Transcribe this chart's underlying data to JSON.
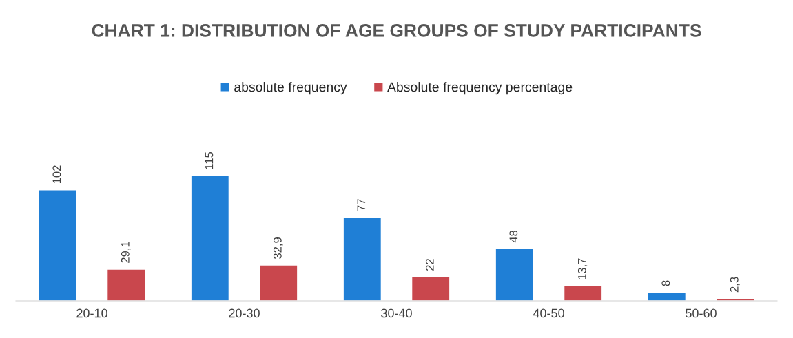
{
  "chart_data": {
    "type": "bar",
    "title": "CHART 1: DISTRIBUTION OF AGE GROUPS OF STUDY PARTICIPANTS",
    "categories": [
      "20-10",
      "20-30",
      "30-40",
      "40-50",
      "50-60"
    ],
    "series": [
      {
        "name": "absolute frequency",
        "color": "#1f7fd6",
        "values": [
          102,
          115,
          77,
          48,
          8
        ],
        "value_labels": [
          "102",
          "115",
          "77",
          "48",
          "8"
        ]
      },
      {
        "name": "Absolute frequency percentage",
        "color": "#c9474d",
        "values": [
          29.1,
          32.9,
          22,
          13.7,
          2.3
        ],
        "value_labels": [
          "29,1",
          "32,9",
          "22",
          "13,7",
          "2,3"
        ]
      }
    ],
    "legend": "top",
    "grid": false
  }
}
